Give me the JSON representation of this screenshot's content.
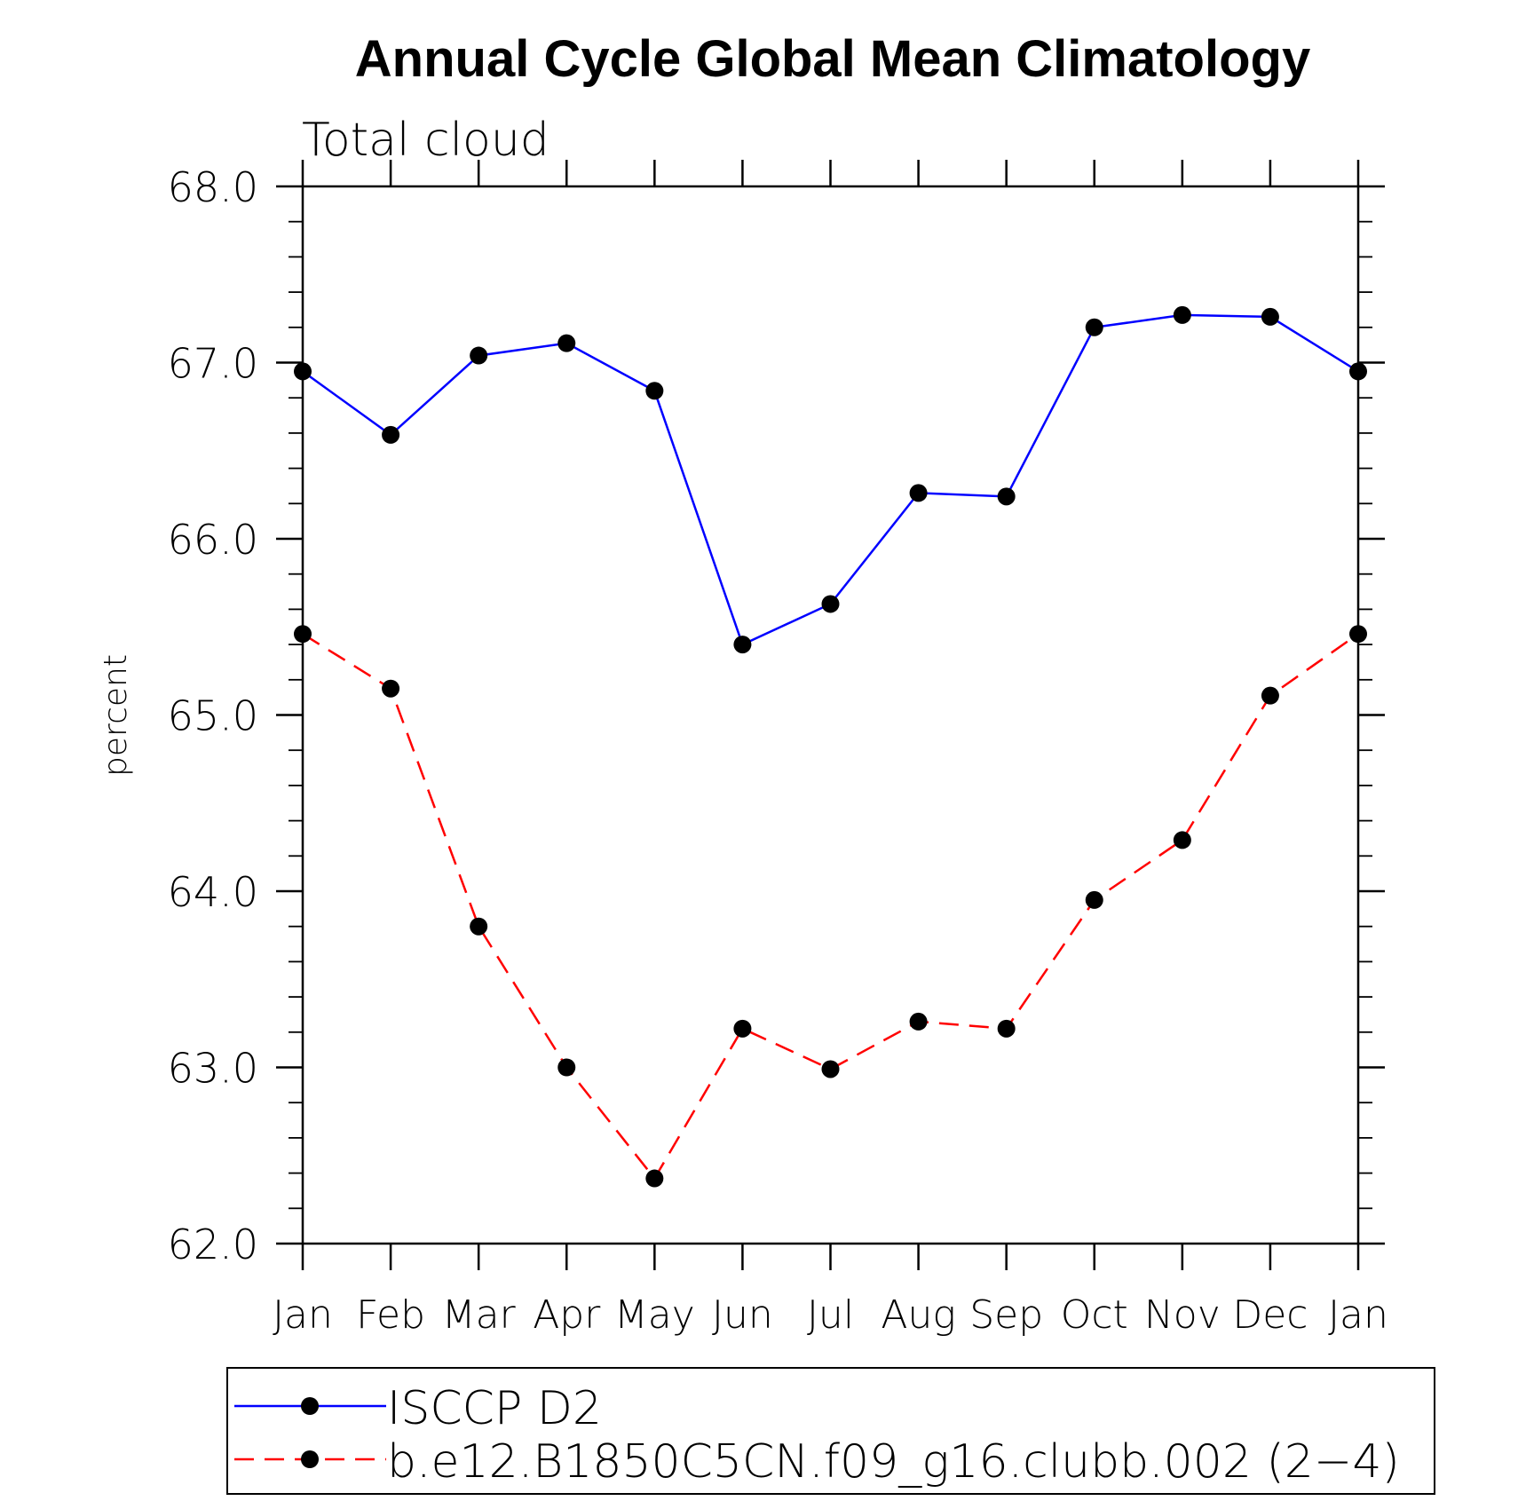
{
  "chart_data": {
    "type": "line",
    "title": "Annual Cycle Global Mean Climatology",
    "subtitle": "Total cloud",
    "xlabel": "",
    "ylabel": "percent",
    "ylim": [
      62.0,
      68.0
    ],
    "yticks": [
      "62.0",
      "63.0",
      "64.0",
      "65.0",
      "66.0",
      "67.0",
      "68.0"
    ],
    "categories": [
      "Jan",
      "Feb",
      "Mar",
      "Apr",
      "May",
      "Jun",
      "Jul",
      "Aug",
      "Sep",
      "Oct",
      "Nov",
      "Dec",
      "Jan"
    ],
    "grid": false,
    "legend_position": "bottom",
    "series": [
      {
        "name": "ISCCP D2",
        "color": "#0000ff",
        "dash": "solid",
        "values": [
          66.95,
          66.59,
          67.04,
          67.11,
          66.84,
          65.4,
          65.63,
          66.26,
          66.24,
          67.2,
          67.27,
          67.26,
          66.95
        ]
      },
      {
        "name": "b.e12.B1850C5CN.f09_g16.clubb.002 (2−4)",
        "color": "#ff0000",
        "dash": "dashed",
        "values": [
          65.46,
          65.15,
          63.8,
          63.0,
          62.37,
          63.22,
          62.99,
          63.26,
          63.22,
          63.95,
          64.29,
          65.11,
          65.46
        ]
      }
    ]
  }
}
